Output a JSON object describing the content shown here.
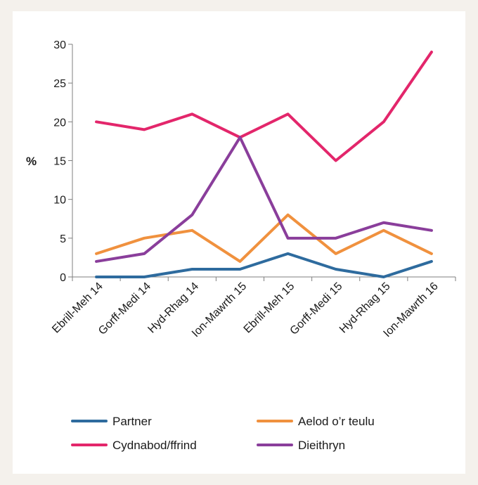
{
  "chart_data": {
    "type": "line",
    "title": "",
    "xlabel": "",
    "ylabel": "%",
    "ylim": [
      0,
      30
    ],
    "yticks": [
      0,
      5,
      10,
      15,
      20,
      25,
      30
    ],
    "categories": [
      "Ebrill-Meh 14",
      "Gorff-Medi 14",
      "Hyd-Rhag 14",
      "Ion-Mawrth 15",
      "Ebrill-Meh 15",
      "Gorff-Medi  15",
      "Hyd-Rhag 15",
      "Ion-Mawrth 16"
    ],
    "grid": false,
    "legend_position": "bottom",
    "series": [
      {
        "name": "Partner",
        "color": "#2e6b9e",
        "values": [
          0,
          0,
          1,
          1,
          3,
          1,
          0,
          2
        ]
      },
      {
        "name": "Aelod o’r teulu",
        "color": "#f0913e",
        "values": [
          3,
          5,
          6,
          2,
          8,
          3,
          6,
          3
        ]
      },
      {
        "name": "Cydnabod/ffrind",
        "color": "#e3266b",
        "values": [
          20,
          19,
          21,
          18,
          21,
          15,
          20,
          29
        ]
      },
      {
        "name": "Dieithryn",
        "color": "#8a3e9b",
        "values": [
          2,
          3,
          8,
          18,
          5,
          5,
          7,
          6
        ]
      }
    ]
  }
}
